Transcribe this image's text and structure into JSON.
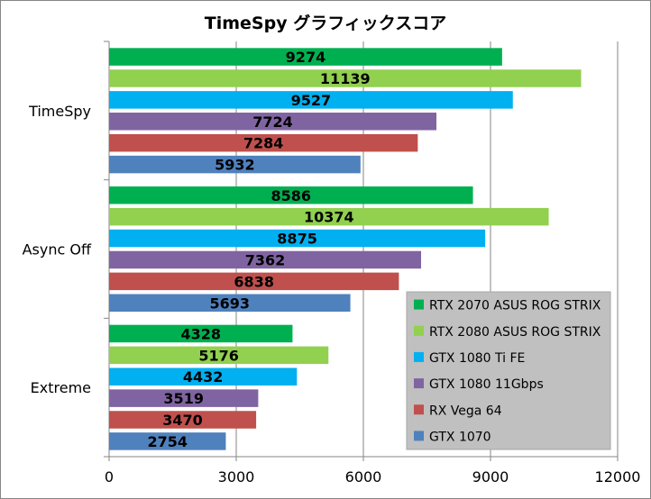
{
  "chart_data": {
    "type": "bar",
    "orientation": "horizontal",
    "title": "TimeSpy グラフィックスコア",
    "categories": [
      "TimeSpy",
      "Async Off",
      "Extreme"
    ],
    "series": [
      {
        "name": "RTX 2070 ASUS ROG STRIX",
        "color": "#00B050",
        "values": [
          9274,
          8586,
          4328
        ]
      },
      {
        "name": "RTX 2080 ASUS ROG STRIX",
        "color": "#92D050",
        "values": [
          11139,
          10374,
          5176
        ]
      },
      {
        "name": "GTX 1080 Ti FE",
        "color": "#00B0F0",
        "values": [
          9527,
          8875,
          4432
        ]
      },
      {
        "name": "GTX 1080 11Gbps",
        "color": "#8064A2",
        "values": [
          7724,
          7362,
          3519
        ]
      },
      {
        "name": "RX Vega 64",
        "color": "#C0504D",
        "values": [
          7284,
          6838,
          3470
        ]
      },
      {
        "name": "GTX 1070",
        "color": "#4F81BD",
        "values": [
          5932,
          5693,
          2754
        ]
      }
    ],
    "xlim": [
      0,
      12000
    ],
    "xticks": [
      0,
      3000,
      6000,
      9000,
      12000
    ],
    "grid": true,
    "data_labels": true,
    "legend_position": "bottom-right"
  }
}
